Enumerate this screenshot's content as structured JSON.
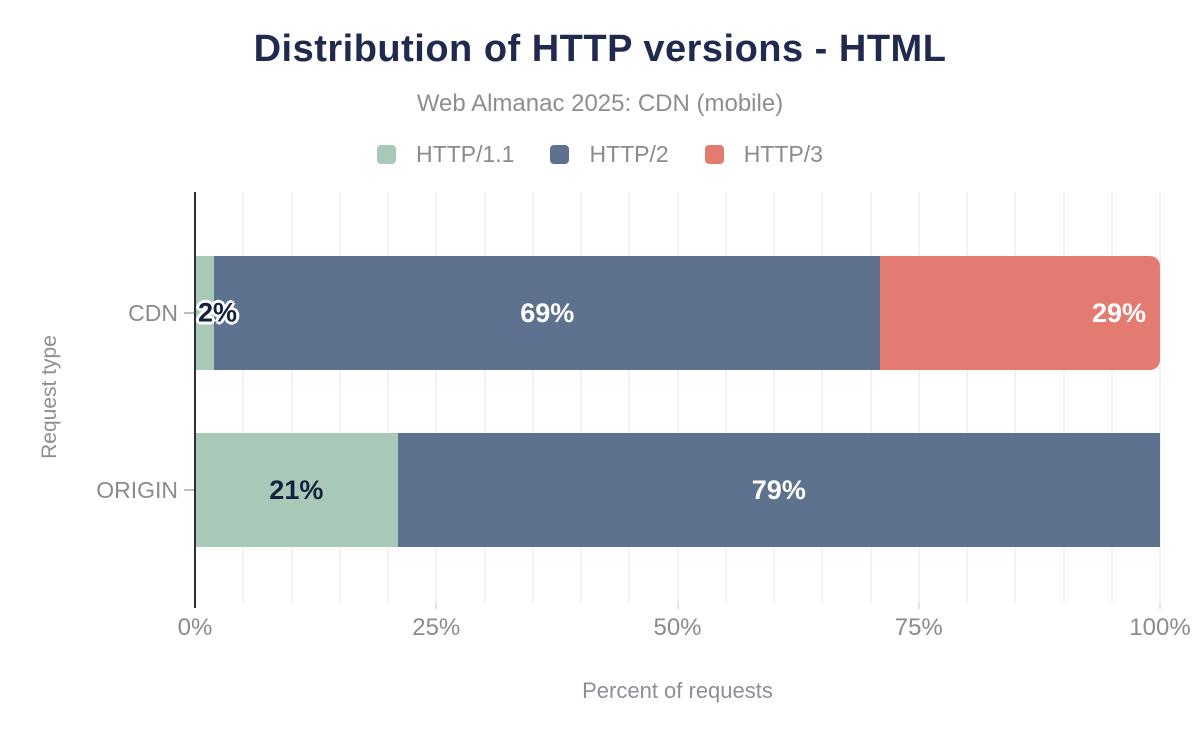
{
  "header": {
    "title": "Distribution of HTTP versions - HTML",
    "subtitle": "Web Almanac 2025: CDN (mobile)"
  },
  "chart_data": {
    "type": "bar",
    "orientation": "horizontal-stacked",
    "title": "Distribution of HTTP versions - HTML",
    "subtitle": "Web Almanac 2025: CDN (mobile)",
    "categories": [
      "CDN",
      "ORIGIN"
    ],
    "series": [
      {
        "name": "HTTP/1.1",
        "color": "#a8c9b7",
        "values": [
          2,
          21
        ]
      },
      {
        "name": "HTTP/2",
        "color": "#5e7290",
        "values": [
          69,
          79
        ]
      },
      {
        "name": "HTTP/3",
        "color": "#e47b71",
        "values": [
          29,
          0
        ]
      }
    ],
    "bars": [
      {
        "category": "CDN",
        "rounded_end": true,
        "segments": [
          {
            "series": "HTTP/1.1",
            "value": 2,
            "label": "2%",
            "label_style": "dark-outlined",
            "label_pos": "overflow-left"
          },
          {
            "series": "HTTP/2",
            "value": 69,
            "label": "69%",
            "label_style": "light",
            "label_pos": "center"
          },
          {
            "series": "HTTP/3",
            "value": 29,
            "label": "29%",
            "label_style": "light",
            "label_pos": "right"
          }
        ]
      },
      {
        "category": "ORIGIN",
        "rounded_end": false,
        "segments": [
          {
            "series": "HTTP/1.1",
            "value": 21,
            "label": "21%",
            "label_style": "dark",
            "label_pos": "center"
          },
          {
            "series": "HTTP/2",
            "value": 79,
            "label": "79%",
            "label_style": "light",
            "label_pos": "center"
          }
        ]
      }
    ],
    "xlabel": "Percent of requests",
    "ylabel": "Request type",
    "x_ticks": [
      "0%",
      "25%",
      "50%",
      "75%",
      "100%"
    ],
    "xlim": [
      0,
      100
    ],
    "grid": "vertical gridlines every 5%",
    "legend_position": "top"
  },
  "colors": {
    "title_text": "#1f2a4e",
    "muted_text": "#8b8b8b",
    "axis_line": "#2f2f2f",
    "gridline": "#f2f2f2",
    "label_light": "#ffffff",
    "label_dark": "#14213d"
  }
}
